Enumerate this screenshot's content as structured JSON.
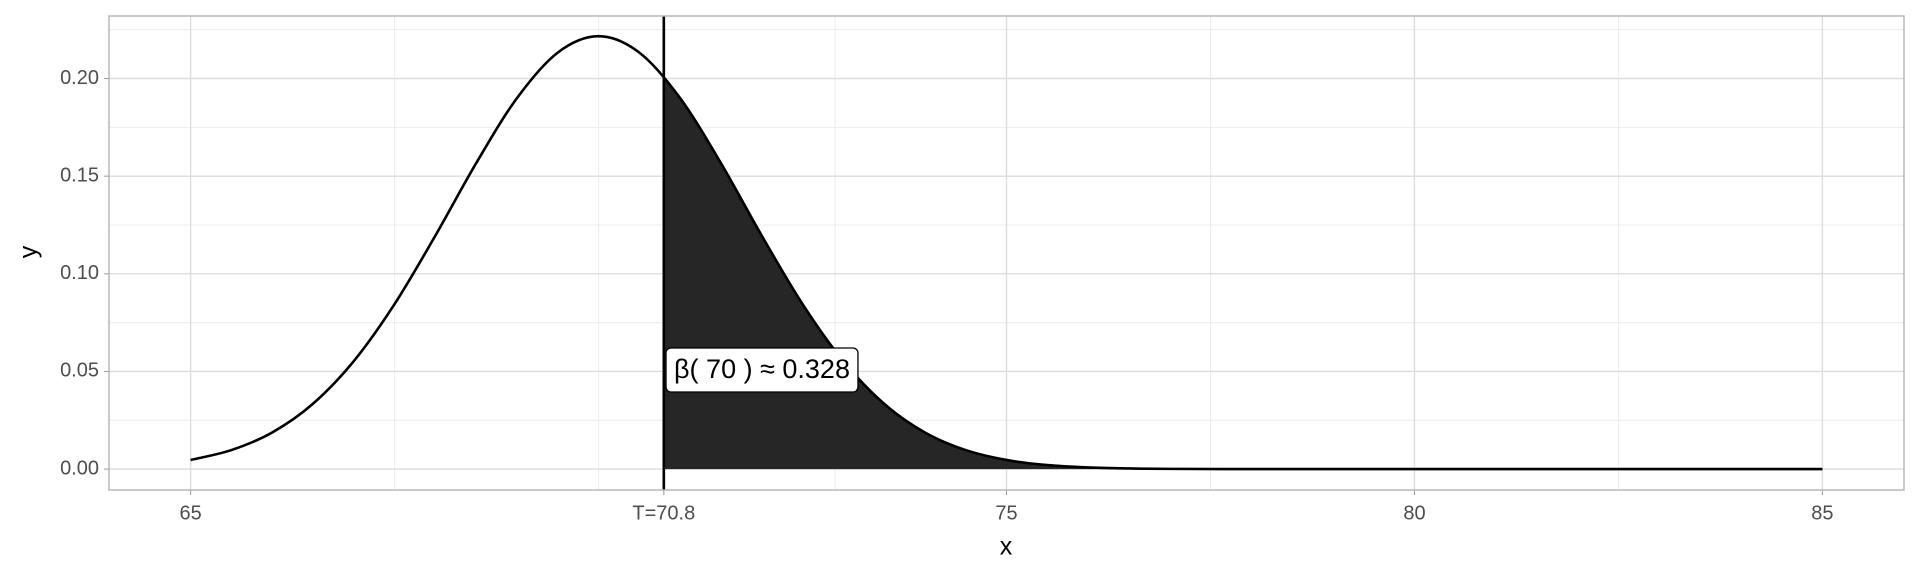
{
  "chart_data": {
    "type": "area",
    "x_label": "x",
    "y_label": "y",
    "x": [
      65,
      65.5,
      66,
      66.5,
      67,
      67.5,
      68,
      68.5,
      69,
      69.5,
      70,
      70.5,
      71,
      71.5,
      72,
      72.5,
      73,
      73.5,
      74,
      74.5,
      75,
      75.5,
      76,
      76.5,
      77,
      78,
      79,
      80,
      81,
      82,
      83,
      84,
      85
    ],
    "values": [
      0.00468,
      0.00974,
      0.01876,
      0.03347,
      0.05528,
      0.0845,
      0.11955,
      0.15664,
      0.18995,
      0.21326,
      0.22164,
      0.21326,
      0.18995,
      0.15664,
      0.11955,
      0.0845,
      0.05528,
      0.03347,
      0.01876,
      0.00974,
      0.00468,
      0.00208,
      0.00086,
      0.00033,
      0.000115,
      1.13e-05,
      0,
      0,
      0,
      0,
      0,
      0,
      0
    ],
    "color": "#000000",
    "shade_color": "#262626",
    "annotation": "β( 70 ) ≈ 0.328",
    "xlim": [
      64.0,
      86.0
    ],
    "xticks": [
      65,
      {
        "value": 70.8,
        "label": "T=70.8"
      },
      75,
      80,
      85
    ],
    "xminor": [
      67.5,
      70,
      72.9,
      77.5,
      82.5
    ],
    "ylim": [
      -0.0107,
      0.232
    ],
    "yticks": [
      {
        "value": 0,
        "label": "0.00"
      },
      {
        "value": 0.05,
        "label": "0.05"
      },
      {
        "value": 0.1,
        "label": "0.10"
      },
      {
        "value": 0.15,
        "label": "0.15"
      },
      {
        "value": 0.2,
        "label": "0.20"
      }
    ],
    "yminor": [
      0.025,
      0.075,
      0.125,
      0.175,
      0.225
    ],
    "grid": true
  }
}
